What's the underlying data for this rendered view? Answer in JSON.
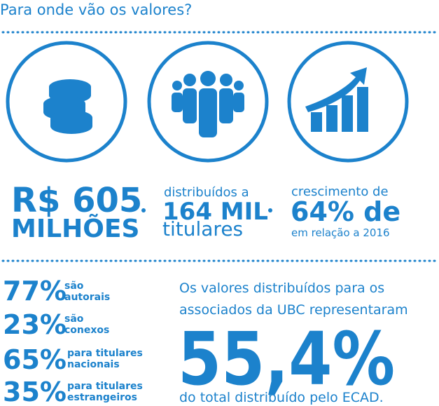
{
  "header": {
    "title": "Para onde vão os valores?"
  },
  "highlights": [
    {
      "lines": [
        "R$ 605",
        "MILHÕES"
      ]
    },
    {
      "lines": [
        "distribuídos a",
        "164 MIL",
        "titulares"
      ]
    },
    {
      "lines": [
        "crescimento de",
        "64% de",
        "em relação a 2016"
      ]
    }
  ],
  "breakdown": [
    {
      "value": "77%",
      "label": [
        "são",
        "autorais"
      ]
    },
    {
      "value": "23%",
      "label": [
        "são",
        "conexos"
      ]
    },
    {
      "value": "65%",
      "label": [
        "para titulares",
        "nacionais"
      ]
    },
    {
      "value": "35%",
      "label": [
        "para titulares",
        "estrangeiros"
      ]
    }
  ],
  "summary": {
    "text_before": [
      "Os valores distribuídos para os",
      "associados da UBC representaram"
    ],
    "figure": "55,4%",
    "text_after": "do total distribuído pelo ECAD."
  }
}
